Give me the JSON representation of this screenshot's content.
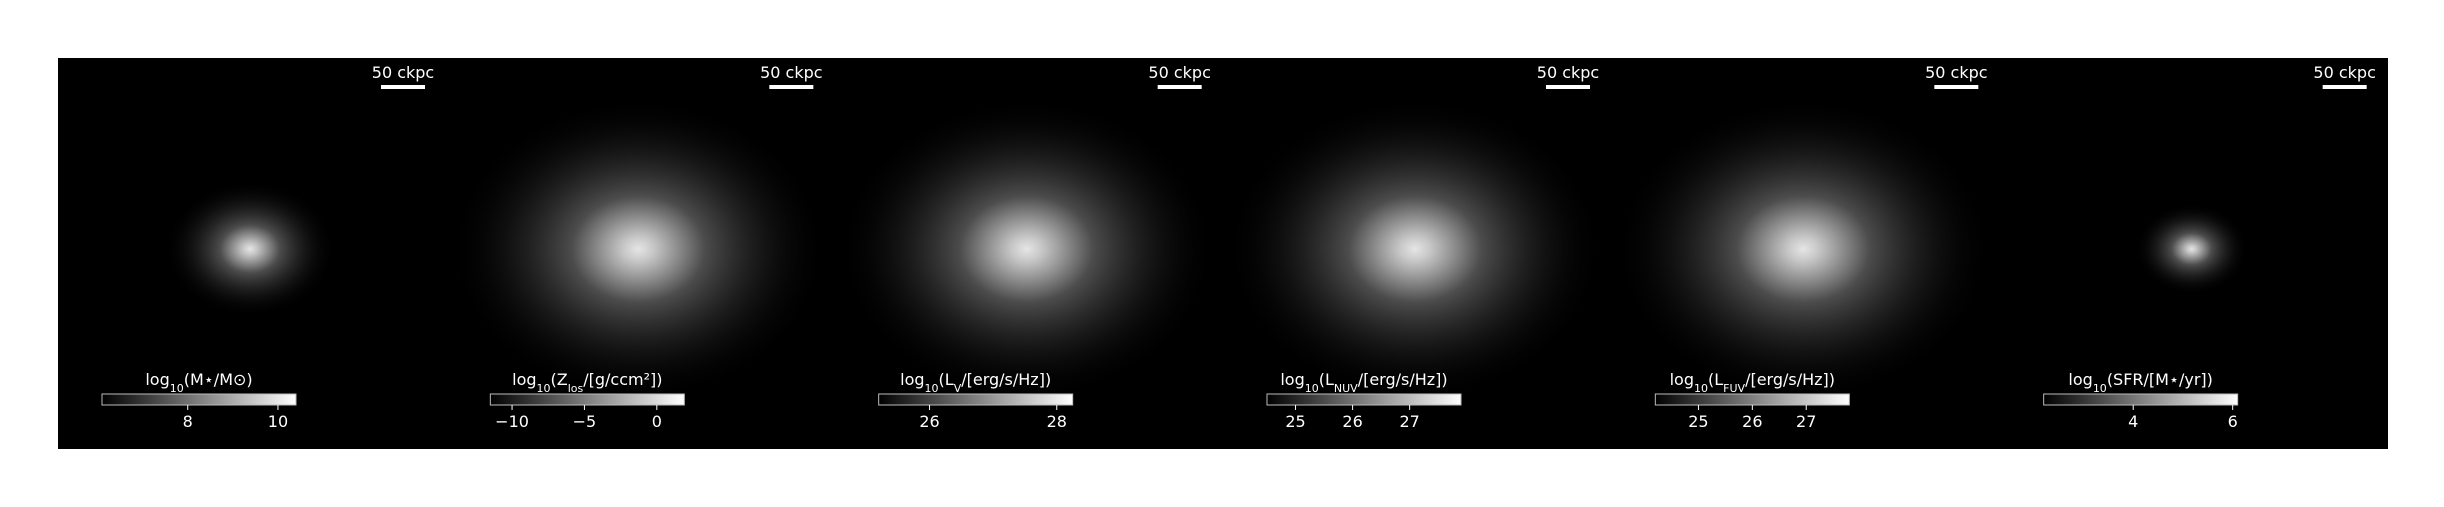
{
  "chart_data": [
    {
      "type": "image",
      "scale_bar": "50 ckpc",
      "colorbar_label": [
        {
          "text": "log"
        },
        {
          "text": "10",
          "sub": true
        },
        {
          "text": "(M⋆/M⊙)"
        }
      ],
      "clim": [
        6.1,
        10.4
      ],
      "cticks": [
        8,
        10
      ],
      "blob": 0.45
    },
    {
      "type": "image",
      "scale_bar": "50 ckpc",
      "colorbar_label": [
        {
          "text": "log"
        },
        {
          "text": "10",
          "sub": true
        },
        {
          "text": "(Z"
        },
        {
          "text": "los",
          "sub": true
        },
        {
          "text": "/[g/ccm²])"
        }
      ],
      "clim": [
        -11.5,
        1.9
      ],
      "cticks": [
        {
          "value": -10,
          "label": "−10"
        },
        {
          "value": -5,
          "label": "−5"
        },
        0
      ],
      "blob": 1
    },
    {
      "type": "image",
      "scale_bar": "50 ckpc",
      "colorbar_label": [
        {
          "text": "log"
        },
        {
          "text": "10",
          "sub": true
        },
        {
          "text": "(L"
        },
        {
          "text": "V",
          "sub": true
        },
        {
          "text": "/[erg/s/Hz])"
        }
      ],
      "clim": [
        25.2,
        28.25
      ],
      "cticks": [
        26,
        28
      ],
      "blob": 1
    },
    {
      "type": "image",
      "scale_bar": "50 ckpc",
      "colorbar_label": [
        {
          "text": "log"
        },
        {
          "text": "10",
          "sub": true
        },
        {
          "text": "(L"
        },
        {
          "text": "NUV",
          "sub": true
        },
        {
          "text": "/[erg/s/Hz])"
        }
      ],
      "clim": [
        24.5,
        27.9
      ],
      "cticks": [
        25,
        26,
        27
      ],
      "blob": 1
    },
    {
      "type": "image",
      "scale_bar": "50 ckpc",
      "colorbar_label": [
        {
          "text": "log"
        },
        {
          "text": "10",
          "sub": true
        },
        {
          "text": "(L"
        },
        {
          "text": "FUV",
          "sub": true
        },
        {
          "text": "/[erg/s/Hz])"
        }
      ],
      "clim": [
        24.2,
        27.8
      ],
      "cticks": [
        25,
        26,
        27
      ],
      "blob": 1
    },
    {
      "type": "image",
      "scale_bar": "50 ckpc",
      "colorbar_label": [
        {
          "text": "log"
        },
        {
          "text": "10",
          "sub": true
        },
        {
          "text": "(SFR/[M⋆/yr])"
        }
      ],
      "clim": [
        2.2,
        6.1
      ],
      "cticks": [
        4,
        6
      ],
      "blob": 0.3
    }
  ]
}
